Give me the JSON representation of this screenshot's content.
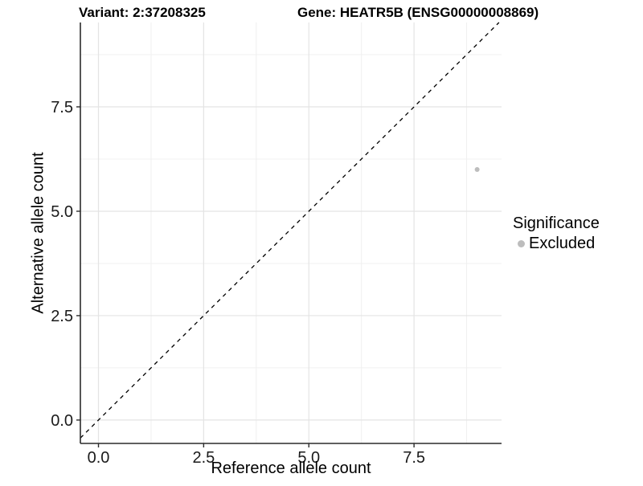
{
  "titles": {
    "variant": "Variant: 2:37208325",
    "gene": "Gene: HEATR5B (ENSG00000008869)"
  },
  "legend": {
    "title": "Significance",
    "entries": [
      {
        "label": "Excluded",
        "color": "#bdbdbd"
      }
    ],
    "position": "right"
  },
  "chart_data": {
    "type": "scatter",
    "title": "Variant: 2:37208325  Gene: HEATR5B (ENSG00000008869)",
    "xlabel": "Reference allele count",
    "ylabel": "Alternative allele count",
    "xlim": [
      -0.43,
      9.58
    ],
    "ylim": [
      -0.56,
      9.52
    ],
    "x_major_ticks": [
      0.0,
      2.5,
      5.0,
      7.5
    ],
    "x_tick_labels": [
      "0.0",
      "2.5",
      "5.0",
      "7.5"
    ],
    "y_major_ticks": [
      0.0,
      2.5,
      5.0,
      7.5
    ],
    "y_tick_labels": [
      "0.0",
      "2.5",
      "5.0",
      "7.5"
    ],
    "x_minor_ticks": [
      1.25,
      3.75,
      6.25,
      8.75
    ],
    "y_minor_ticks": [
      1.25,
      3.75,
      6.25,
      8.75
    ],
    "grid": true,
    "grid_major_color": "#e4e4e4",
    "grid_minor_color": "#f0f0f0",
    "axis_line_color": "#2b2b2b",
    "tick_label_color": "#1a1a1a",
    "series": [
      {
        "name": "Excluded",
        "color": "#bdbdbd",
        "point_radius": 3,
        "points": [
          {
            "x": 9,
            "y": 6
          }
        ]
      }
    ],
    "reference_line": {
      "type": "identity",
      "equation": "y = x",
      "style": "dashed",
      "color": "#000000"
    }
  }
}
